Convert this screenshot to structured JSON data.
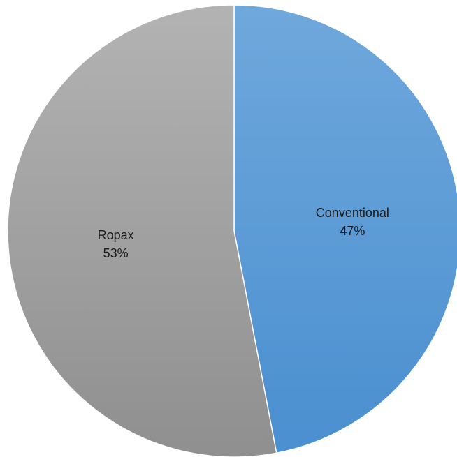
{
  "chart_data": {
    "type": "pie",
    "start_angle_deg": 0,
    "direction": "clockwise",
    "slices": [
      {
        "label": "Conventional",
        "value": 47,
        "pct_label": "47%",
        "color_top": "#6fa8dc",
        "color_bottom": "#4a8fd0"
      },
      {
        "label": "Ropax",
        "value": 53,
        "pct_label": "53%",
        "color_top": "#b3b3b3",
        "color_bottom": "#8f8f8f"
      }
    ],
    "slice_border_color": "#ffffff"
  }
}
